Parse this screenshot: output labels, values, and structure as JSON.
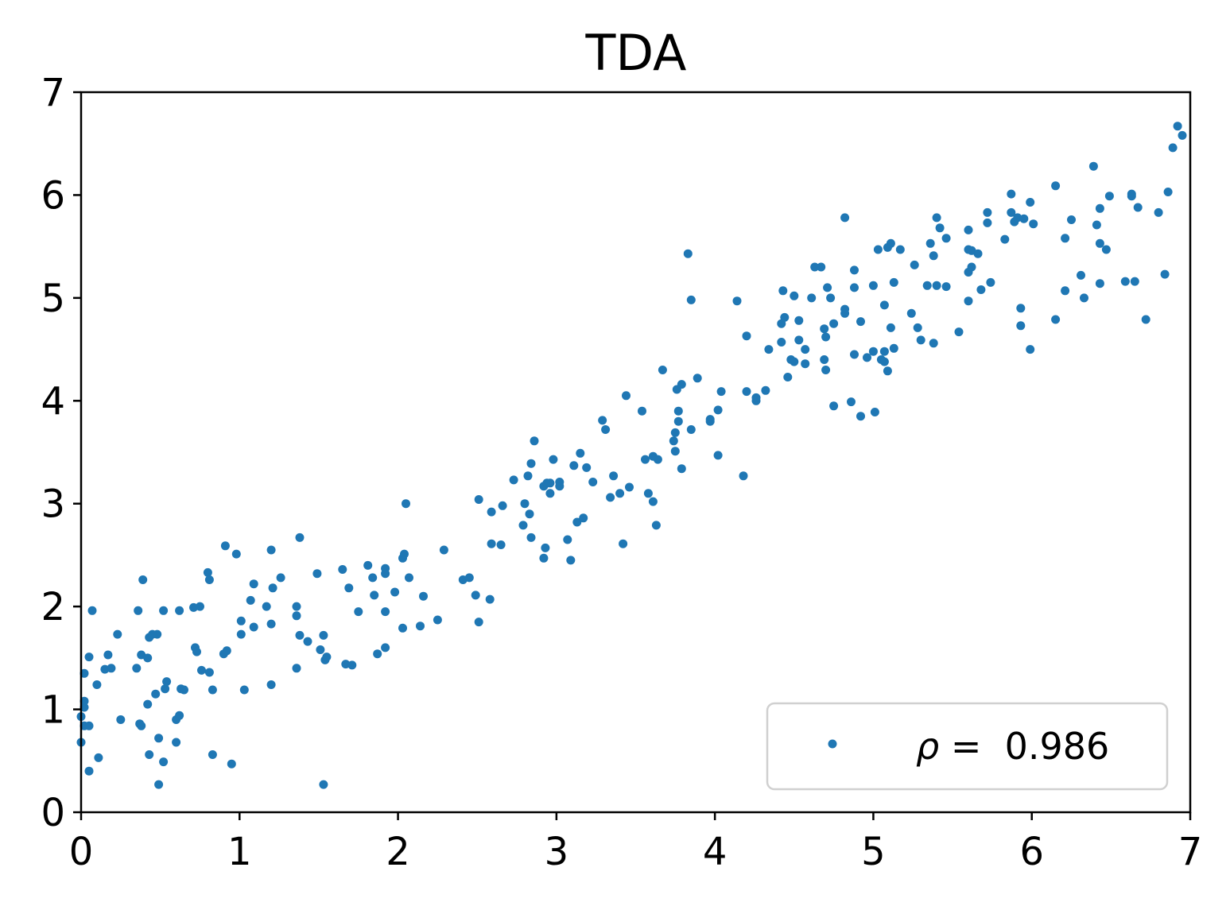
{
  "chart_data": {
    "type": "scatter",
    "title": "TDA",
    "xlabel": "",
    "ylabel": "",
    "xlim": [
      0,
      7
    ],
    "ylim": [
      0,
      7
    ],
    "xticks": [
      "0",
      "1",
      "2",
      "3",
      "4",
      "5",
      "6",
      "7"
    ],
    "yticks": [
      "0",
      "1",
      "2",
      "3",
      "4",
      "5",
      "6",
      "7"
    ],
    "grid": false,
    "legend_position": "lower-right",
    "colors": {
      "series": "#1f77b4"
    },
    "series": [
      {
        "name": "ρ = 0.986",
        "legend_symbol": "ρ",
        "legend_text": " =  0.986",
        "points": [
          [
            0.0,
            0.68
          ],
          [
            0.0,
            0.93
          ],
          [
            0.02,
            1.02
          ],
          [
            0.02,
            1.08
          ],
          [
            0.02,
            0.84
          ],
          [
            0.02,
            1.35
          ],
          [
            0.05,
            0.84
          ],
          [
            0.05,
            1.51
          ],
          [
            0.05,
            0.4
          ],
          [
            0.07,
            1.96
          ],
          [
            0.1,
            1.24
          ],
          [
            0.11,
            0.53
          ],
          [
            0.15,
            1.39
          ],
          [
            0.17,
            1.53
          ],
          [
            0.19,
            1.4
          ],
          [
            0.23,
            1.73
          ],
          [
            0.25,
            0.9
          ],
          [
            0.35,
            1.4
          ],
          [
            0.36,
            1.96
          ],
          [
            0.37,
            0.86
          ],
          [
            0.38,
            0.84
          ],
          [
            0.38,
            1.53
          ],
          [
            0.39,
            2.26
          ],
          [
            0.42,
            1.5
          ],
          [
            0.42,
            1.05
          ],
          [
            0.43,
            1.7
          ],
          [
            0.43,
            0.56
          ],
          [
            0.45,
            1.73
          ],
          [
            0.47,
            1.15
          ],
          [
            0.48,
            1.73
          ],
          [
            0.49,
            0.72
          ],
          [
            0.49,
            0.27
          ],
          [
            0.52,
            1.96
          ],
          [
            0.52,
            0.49
          ],
          [
            0.53,
            1.2
          ],
          [
            0.54,
            1.27
          ],
          [
            0.6,
            0.68
          ],
          [
            0.6,
            0.9
          ],
          [
            0.62,
            1.96
          ],
          [
            0.62,
            0.94
          ],
          [
            0.63,
            1.2
          ],
          [
            0.65,
            1.19
          ],
          [
            0.71,
            1.99
          ],
          [
            0.72,
            1.6
          ],
          [
            0.73,
            1.56
          ],
          [
            0.75,
            2.0
          ],
          [
            0.76,
            1.38
          ],
          [
            0.8,
            2.33
          ],
          [
            0.81,
            1.36
          ],
          [
            0.81,
            2.26
          ],
          [
            0.83,
            0.56
          ],
          [
            0.83,
            1.19
          ],
          [
            0.9,
            1.54
          ],
          [
            0.91,
            2.59
          ],
          [
            0.92,
            1.57
          ],
          [
            0.95,
            0.47
          ],
          [
            0.98,
            2.51
          ],
          [
            1.01,
            1.73
          ],
          [
            1.01,
            1.86
          ],
          [
            1.03,
            1.19
          ],
          [
            1.07,
            2.06
          ],
          [
            1.09,
            2.22
          ],
          [
            1.09,
            1.8
          ],
          [
            1.17,
            2.0
          ],
          [
            1.2,
            2.55
          ],
          [
            1.2,
            1.83
          ],
          [
            1.2,
            1.24
          ],
          [
            1.21,
            2.18
          ],
          [
            1.26,
            2.28
          ],
          [
            1.36,
            1.4
          ],
          [
            1.36,
            1.91
          ],
          [
            1.36,
            2.0
          ],
          [
            1.38,
            1.72
          ],
          [
            1.38,
            2.67
          ],
          [
            1.43,
            1.66
          ],
          [
            1.49,
            2.32
          ],
          [
            1.51,
            1.58
          ],
          [
            1.53,
            1.72
          ],
          [
            1.53,
            0.27
          ],
          [
            1.54,
            1.48
          ],
          [
            1.55,
            1.51
          ],
          [
            1.65,
            2.36
          ],
          [
            1.67,
            1.44
          ],
          [
            1.69,
            2.18
          ],
          [
            1.71,
            1.43
          ],
          [
            1.75,
            1.95
          ],
          [
            1.81,
            2.4
          ],
          [
            1.84,
            2.28
          ],
          [
            1.85,
            2.11
          ],
          [
            1.87,
            1.54
          ],
          [
            1.92,
            1.6
          ],
          [
            1.92,
            2.37
          ],
          [
            1.92,
            2.32
          ],
          [
            1.92,
            1.95
          ],
          [
            1.98,
            2.14
          ],
          [
            2.03,
            2.47
          ],
          [
            2.03,
            1.79
          ],
          [
            2.04,
            2.51
          ],
          [
            2.05,
            3.0
          ],
          [
            2.07,
            2.28
          ],
          [
            2.14,
            1.81
          ],
          [
            2.16,
            2.1
          ],
          [
            2.25,
            1.87
          ],
          [
            2.29,
            2.55
          ],
          [
            2.41,
            2.26
          ],
          [
            2.45,
            2.28
          ],
          [
            2.49,
            2.11
          ],
          [
            2.51,
            1.85
          ],
          [
            2.51,
            3.04
          ],
          [
            2.58,
            2.07
          ],
          [
            2.59,
            2.92
          ],
          [
            2.59,
            2.61
          ],
          [
            2.65,
            2.6
          ],
          [
            2.66,
            2.98
          ],
          [
            2.73,
            3.23
          ],
          [
            2.79,
            2.79
          ],
          [
            2.8,
            3.0
          ],
          [
            2.82,
            3.27
          ],
          [
            2.83,
            2.9
          ],
          [
            2.84,
            2.67
          ],
          [
            2.84,
            3.39
          ],
          [
            2.86,
            3.61
          ],
          [
            2.92,
            3.17
          ],
          [
            2.92,
            2.47
          ],
          [
            2.93,
            2.57
          ],
          [
            2.94,
            3.2
          ],
          [
            2.96,
            3.1
          ],
          [
            2.96,
            3.2
          ],
          [
            2.98,
            3.43
          ],
          [
            3.02,
            3.17
          ],
          [
            3.02,
            3.21
          ],
          [
            3.07,
            2.65
          ],
          [
            3.09,
            2.45
          ],
          [
            3.11,
            3.37
          ],
          [
            3.13,
            2.82
          ],
          [
            3.15,
            3.49
          ],
          [
            3.17,
            2.86
          ],
          [
            3.19,
            3.35
          ],
          [
            3.23,
            3.21
          ],
          [
            3.29,
            3.81
          ],
          [
            3.31,
            3.72
          ],
          [
            3.34,
            3.06
          ],
          [
            3.36,
            3.27
          ],
          [
            3.4,
            3.1
          ],
          [
            3.42,
            2.61
          ],
          [
            3.44,
            4.05
          ],
          [
            3.46,
            3.16
          ],
          [
            3.54,
            3.9
          ],
          [
            3.56,
            3.43
          ],
          [
            3.58,
            3.1
          ],
          [
            3.61,
            3.46
          ],
          [
            3.61,
            3.02
          ],
          [
            3.63,
            2.79
          ],
          [
            3.64,
            3.43
          ],
          [
            3.67,
            4.3
          ],
          [
            3.74,
            3.61
          ],
          [
            3.75,
            3.69
          ],
          [
            3.75,
            3.51
          ],
          [
            3.76,
            4.11
          ],
          [
            3.77,
            3.8
          ],
          [
            3.77,
            3.9
          ],
          [
            3.79,
            3.34
          ],
          [
            3.79,
            4.16
          ],
          [
            3.83,
            5.43
          ],
          [
            3.85,
            3.72
          ],
          [
            3.85,
            4.98
          ],
          [
            3.89,
            4.22
          ],
          [
            3.97,
            3.82
          ],
          [
            3.97,
            3.8
          ],
          [
            4.02,
            3.91
          ],
          [
            4.02,
            3.47
          ],
          [
            4.04,
            4.09
          ],
          [
            4.14,
            4.97
          ],
          [
            4.18,
            3.27
          ],
          [
            4.2,
            4.63
          ],
          [
            4.2,
            4.09
          ],
          [
            4.26,
            4.0
          ],
          [
            4.26,
            4.03
          ],
          [
            4.32,
            4.1
          ],
          [
            4.34,
            4.5
          ],
          [
            4.42,
            4.57
          ],
          [
            4.42,
            4.75
          ],
          [
            4.43,
            5.07
          ],
          [
            4.44,
            4.81
          ],
          [
            4.46,
            4.23
          ],
          [
            4.48,
            4.4
          ],
          [
            4.5,
            5.02
          ],
          [
            4.5,
            4.38
          ],
          [
            4.53,
            4.78
          ],
          [
            4.53,
            4.59
          ],
          [
            4.57,
            4.36
          ],
          [
            4.57,
            4.5
          ],
          [
            4.61,
            5.0
          ],
          [
            4.63,
            5.3
          ],
          [
            4.67,
            5.3
          ],
          [
            4.69,
            4.4
          ],
          [
            4.69,
            4.7
          ],
          [
            4.7,
            4.3
          ],
          [
            4.7,
            4.62
          ],
          [
            4.71,
            5.1
          ],
          [
            4.73,
            5.0
          ],
          [
            4.75,
            3.95
          ],
          [
            4.75,
            4.75
          ],
          [
            4.82,
            5.78
          ],
          [
            4.82,
            4.85
          ],
          [
            4.82,
            4.89
          ],
          [
            4.86,
            3.99
          ],
          [
            4.88,
            4.45
          ],
          [
            4.88,
            5.1
          ],
          [
            4.88,
            5.27
          ],
          [
            4.92,
            4.77
          ],
          [
            4.92,
            3.85
          ],
          [
            4.96,
            4.42
          ],
          [
            5.0,
            5.12
          ],
          [
            5.0,
            4.48
          ],
          [
            5.01,
            3.89
          ],
          [
            5.03,
            5.47
          ],
          [
            5.05,
            4.4
          ],
          [
            5.07,
            4.93
          ],
          [
            5.07,
            4.38
          ],
          [
            5.07,
            4.48
          ],
          [
            5.09,
            5.49
          ],
          [
            5.09,
            4.29
          ],
          [
            5.11,
            4.71
          ],
          [
            5.11,
            5.53
          ],
          [
            5.13,
            4.51
          ],
          [
            5.13,
            5.15
          ],
          [
            5.17,
            5.47
          ],
          [
            5.24,
            4.85
          ],
          [
            5.26,
            5.32
          ],
          [
            5.28,
            4.71
          ],
          [
            5.3,
            4.59
          ],
          [
            5.34,
            5.12
          ],
          [
            5.36,
            5.53
          ],
          [
            5.38,
            4.56
          ],
          [
            5.38,
            5.41
          ],
          [
            5.4,
            5.78
          ],
          [
            5.4,
            5.12
          ],
          [
            5.42,
            5.68
          ],
          [
            5.46,
            5.11
          ],
          [
            5.46,
            5.58
          ],
          [
            5.54,
            4.67
          ],
          [
            5.6,
            5.66
          ],
          [
            5.6,
            4.97
          ],
          [
            5.6,
            5.25
          ],
          [
            5.6,
            5.47
          ],
          [
            5.62,
            5.3
          ],
          [
            5.62,
            5.46
          ],
          [
            5.66,
            5.43
          ],
          [
            5.68,
            5.08
          ],
          [
            5.72,
            5.83
          ],
          [
            5.72,
            5.73
          ],
          [
            5.74,
            5.15
          ],
          [
            5.83,
            5.57
          ],
          [
            5.87,
            5.83
          ],
          [
            5.87,
            6.01
          ],
          [
            5.89,
            5.74
          ],
          [
            5.91,
            5.78
          ],
          [
            5.93,
            4.9
          ],
          [
            5.93,
            4.73
          ],
          [
            5.95,
            5.77
          ],
          [
            5.99,
            5.93
          ],
          [
            5.99,
            4.5
          ],
          [
            6.01,
            5.72
          ],
          [
            6.15,
            4.79
          ],
          [
            6.15,
            6.09
          ],
          [
            6.21,
            5.07
          ],
          [
            6.21,
            5.58
          ],
          [
            6.25,
            5.76
          ],
          [
            6.31,
            5.22
          ],
          [
            6.33,
            5.0
          ],
          [
            6.39,
            6.28
          ],
          [
            6.41,
            5.71
          ],
          [
            6.43,
            5.53
          ],
          [
            6.43,
            5.14
          ],
          [
            6.43,
            5.87
          ],
          [
            6.47,
            5.47
          ],
          [
            6.49,
            5.99
          ],
          [
            6.59,
            5.16
          ],
          [
            6.63,
            6.01
          ],
          [
            6.63,
            5.99
          ],
          [
            6.65,
            5.16
          ],
          [
            6.67,
            5.88
          ],
          [
            6.72,
            4.79
          ],
          [
            6.8,
            5.83
          ],
          [
            6.84,
            5.23
          ],
          [
            6.86,
            6.03
          ],
          [
            6.89,
            6.46
          ],
          [
            6.92,
            6.67
          ],
          [
            6.95,
            6.58
          ]
        ]
      }
    ]
  }
}
